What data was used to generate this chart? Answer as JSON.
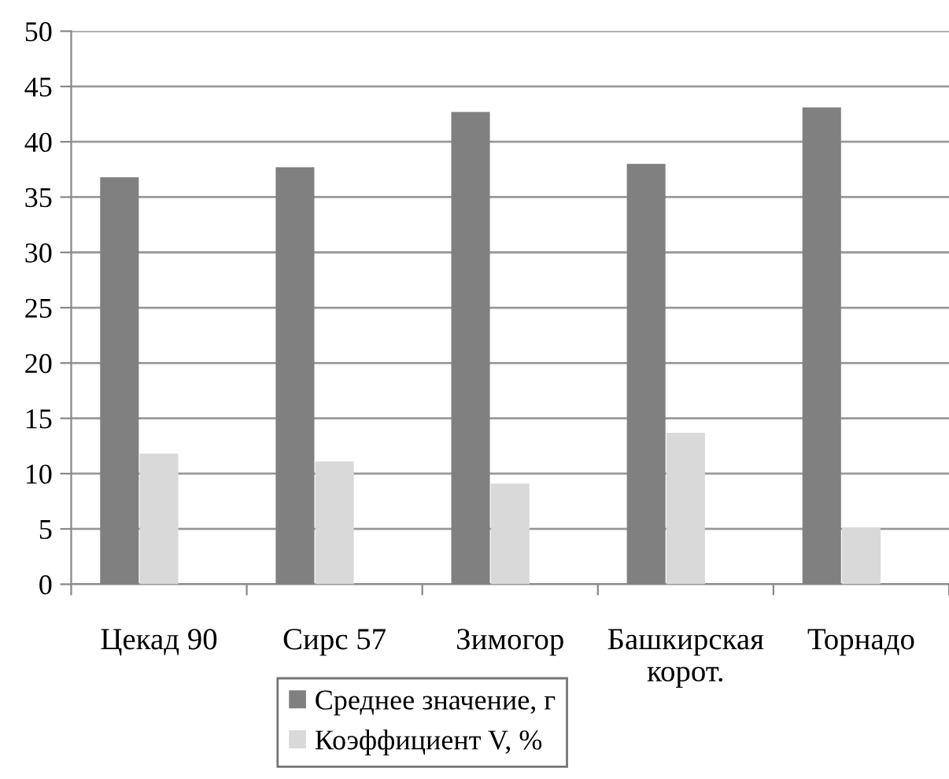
{
  "chart_data": {
    "type": "bar",
    "categories": [
      "Цекад 90",
      "Сирс 57",
      "Зимогор",
      "Башкирская\nкорот.",
      "Торнадо"
    ],
    "series": [
      {
        "name": "Среднее значение, г",
        "color": "#808080",
        "values": [
          36.8,
          37.7,
          42.7,
          38.0,
          43.1
        ]
      },
      {
        "name": "Коэффициент V, %",
        "color": "#d9d9d9",
        "values": [
          11.8,
          11.1,
          9.1,
          13.7,
          5.1
        ]
      }
    ],
    "ylim": [
      0,
      50
    ],
    "yticks": [
      0,
      5,
      10,
      15,
      20,
      25,
      30,
      35,
      40,
      45,
      50
    ],
    "grid": "y",
    "legend": "bottom"
  }
}
